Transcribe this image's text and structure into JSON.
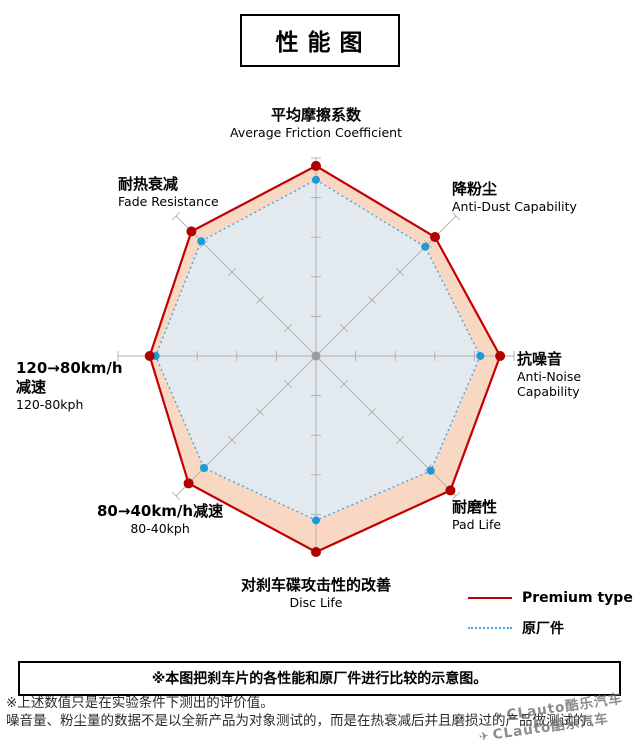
{
  "title": "性能图",
  "chart_data": {
    "type": "radar",
    "scale": {
      "min": 0,
      "max": 10,
      "gridlines": 5,
      "tick_labels_visible": false
    },
    "axes": [
      {
        "zh": "平均摩擦系数",
        "en": "Average Friction Coefficient"
      },
      {
        "zh": "降粉尘",
        "en": "Anti-Dust Capability"
      },
      {
        "zh": "抗噪音",
        "en": "Anti-Noise Capability"
      },
      {
        "zh": "耐磨性",
        "en": "Pad Life"
      },
      {
        "zh": "对刹车碟攻击性的改善",
        "en": "Disc Life"
      },
      {
        "zh": "80→40km/h减速",
        "en": "80-40kph"
      },
      {
        "zh": "120→80km/h",
        "zh2": "减速",
        "en": "120-80kph"
      },
      {
        "zh": "耐热衰减",
        "en": "Fade Resistance"
      }
    ],
    "series": [
      {
        "name": "Premium type",
        "color": "#c30000",
        "dot_color": "#b00000",
        "fill": "#f8d8c2",
        "style": "solid",
        "values": [
          9.6,
          8.5,
          9.3,
          9.6,
          9.9,
          9.1,
          8.4,
          8.9
        ]
      },
      {
        "name": "原厂件",
        "color": "#4aa4d8",
        "dot_color": "#1e9ad6",
        "fill": "#e2eaef",
        "style": "dotted",
        "values": [
          8.9,
          7.8,
          8.3,
          8.2,
          8.3,
          8.0,
          8.1,
          8.2
        ]
      }
    ],
    "axis_color": "#a9a9a9",
    "center_dot_color": "#9b9b9b",
    "legend_position": "bottom-right"
  },
  "note": "※本图把刹车片的各性能和原厂件进行比较的示意图。",
  "footnotes": {
    "line1": "※上述数值只是在实验条件下测出的评价值。",
    "line2": "噪音量、粉尘量的数据不是以全新产品为对象测试的，而是在热衰减后并且磨损过的产品做测试的。"
  },
  "watermark": "CLauto酷乐汽车"
}
